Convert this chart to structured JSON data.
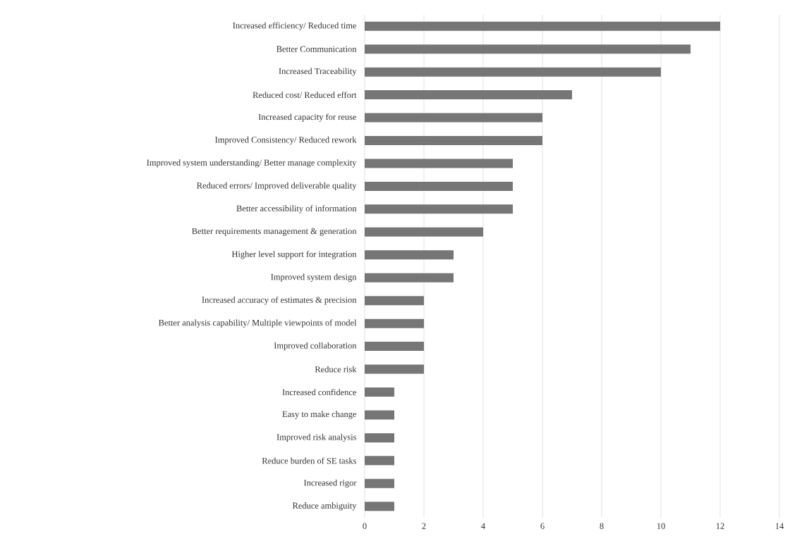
{
  "chart_data": {
    "type": "bar",
    "orientation": "horizontal",
    "categories": [
      "Increased efficiency/ Reduced time",
      "Better Communication",
      "Increased Traceability",
      "Reduced cost/ Reduced effort",
      "Increased capacity for reuse",
      "Improved Consistency/ Reduced rework",
      "Improved system understanding/ Better manage complexity",
      "Reduced errors/ Improved deliverable quality",
      "Better accessibility of information",
      "Better requirements management & generation",
      "Higher level support for integration",
      "Improved system design",
      "Increased accuracy of estimates & precision",
      "Better analysis capability/ Multiple viewpoints of model",
      "Improved collaboration",
      "Reduce risk",
      "Increased confidence",
      "Easy to make change",
      "Improved risk analysis",
      "Reduce burden of SE tasks",
      "Increased rigor",
      "Reduce ambiguity"
    ],
    "values": [
      12,
      11,
      10,
      7,
      6,
      6,
      5,
      5,
      5,
      4,
      3,
      3,
      2,
      2,
      2,
      2,
      1,
      1,
      1,
      1,
      1,
      1
    ],
    "color": "#767676",
    "xlim": [
      0,
      14
    ],
    "xticks": [
      0,
      2,
      4,
      6,
      8,
      10,
      12,
      14
    ],
    "grid": "x"
  }
}
